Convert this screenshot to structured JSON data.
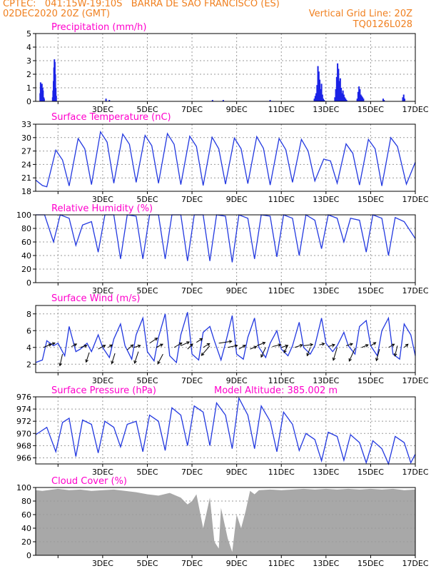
{
  "header": {
    "line1_left": "CPTEC:   041:15W-19:10S   BARRA DE SAO FRANCISCO (ES)",
    "line2_left": "02DEC2020 20Z (GMT)",
    "line2_right": "Vertical Grid Line: 20Z",
    "line3_right": "TQ0126L028"
  },
  "x_days": [
    "3DEC",
    "5DEC",
    "7DEC",
    "9DEC",
    "11DEC",
    "13DEC",
    "15DEC",
    "17DEC"
  ],
  "colors": {
    "series": "#2238e0",
    "bars": "#1a22e6",
    "cloud": "#a8a8a8",
    "title": "#ff00cc",
    "header": "#f08020"
  },
  "chart_data": [
    {
      "id": "precip",
      "type": "bar",
      "title": "Precipitation (mm/h)",
      "ylim": [
        0,
        5
      ],
      "yticks": [
        0,
        1,
        2,
        3,
        4,
        5
      ],
      "x": [
        0.2,
        0.22,
        0.25,
        0.28,
        0.31,
        0.33,
        0.36,
        0.38,
        0.76,
        0.78,
        0.8,
        0.82,
        0.84,
        0.86,
        0.88,
        0.9,
        0.92,
        3.15,
        3.3,
        7.92,
        8.4,
        10.5,
        12.48,
        12.52,
        12.56,
        12.6,
        12.64,
        12.68,
        12.72,
        12.76,
        12.8,
        12.84,
        12.88,
        12.92,
        13.4,
        13.44,
        13.48,
        13.52,
        13.56,
        13.6,
        13.64,
        13.68,
        13.72,
        13.76,
        13.8,
        13.84,
        13.88,
        13.92,
        14.4,
        14.44,
        14.48,
        14.52,
        14.56,
        14.6,
        14.64,
        14.68,
        15.56,
        15.6,
        16.44,
        16.48,
        16.52
      ],
      "values": [
        0.6,
        1.4,
        1.2,
        1.3,
        1.0,
        0.8,
        0.3,
        0.2,
        0.3,
        0.8,
        1.5,
        2.5,
        3.1,
        2.9,
        2.0,
        1.0,
        0.4,
        0.2,
        0.1,
        0.1,
        0.1,
        0.1,
        0.2,
        0.4,
        0.6,
        1.2,
        2.6,
        2.2,
        1.6,
        0.9,
        1.3,
        0.5,
        0.2,
        0.1,
        0.3,
        0.9,
        1.8,
        2.8,
        2.4,
        1.5,
        1.7,
        1.0,
        0.6,
        0.8,
        0.5,
        0.3,
        0.2,
        0.1,
        0.2,
        0.7,
        1.1,
        0.9,
        0.5,
        0.4,
        0.3,
        0.2,
        0.2,
        0.1,
        0.3,
        0.5,
        0.2
      ]
    },
    {
      "id": "temp",
      "type": "line",
      "title": "Surface Temperature (nC)",
      "ylim": [
        18,
        33
      ],
      "yticks": [
        18,
        21,
        24,
        27,
        30,
        33
      ],
      "x": [
        0.0,
        0.3,
        0.5,
        0.9,
        1.2,
        1.5,
        1.9,
        2.2,
        2.5,
        2.9,
        3.2,
        3.5,
        3.9,
        4.2,
        4.5,
        4.9,
        5.2,
        5.5,
        5.9,
        6.2,
        6.5,
        6.9,
        7.2,
        7.5,
        7.9,
        8.2,
        8.5,
        8.9,
        9.2,
        9.5,
        9.9,
        10.2,
        10.5,
        10.9,
        11.2,
        11.5,
        11.9,
        12.2,
        12.5,
        12.9,
        13.2,
        13.5,
        13.9,
        14.2,
        14.5,
        14.9,
        15.2,
        15.5,
        15.9,
        16.2,
        16.6,
        17.0
      ],
      "values": [
        20.5,
        19.3,
        19.0,
        27.2,
        25.0,
        19.2,
        29.8,
        27.5,
        19.5,
        31.3,
        29.0,
        19.8,
        30.8,
        28.5,
        20.0,
        30.5,
        28.2,
        19.8,
        30.9,
        28.5,
        19.5,
        30.3,
        28.0,
        19.3,
        30.1,
        27.5,
        19.6,
        29.9,
        27.5,
        19.7,
        30.2,
        27.6,
        19.4,
        29.8,
        27.3,
        20.0,
        29.6,
        27.0,
        20.3,
        25.2,
        24.8,
        19.8,
        28.6,
        26.5,
        19.4,
        29.6,
        27.5,
        19.2,
        30.0,
        28.0,
        19.6,
        24.5
      ]
    },
    {
      "id": "rh",
      "type": "line",
      "title": "Relative Humidity (%)",
      "ylim": [
        0,
        100
      ],
      "yticks": [
        0,
        20,
        40,
        60,
        80,
        100
      ],
      "x": [
        0.0,
        0.4,
        0.8,
        1.1,
        1.5,
        1.8,
        2.1,
        2.5,
        2.8,
        3.1,
        3.5,
        3.8,
        4.1,
        4.5,
        4.8,
        5.1,
        5.5,
        5.8,
        6.1,
        6.5,
        6.8,
        7.1,
        7.5,
        7.8,
        8.1,
        8.5,
        8.8,
        9.1,
        9.5,
        9.8,
        10.1,
        10.5,
        10.8,
        11.1,
        11.5,
        11.8,
        12.1,
        12.5,
        12.8,
        13.1,
        13.5,
        13.8,
        14.1,
        14.5,
        14.8,
        15.1,
        15.5,
        15.8,
        16.1,
        16.5,
        17.0
      ],
      "values": [
        100,
        100,
        60,
        100,
        95,
        55,
        85,
        90,
        45,
        100,
        100,
        35,
        100,
        98,
        35,
        100,
        100,
        35,
        100,
        100,
        32,
        100,
        100,
        32,
        100,
        98,
        30,
        100,
        95,
        35,
        100,
        98,
        38,
        100,
        95,
        40,
        100,
        92,
        50,
        100,
        95,
        60,
        95,
        92,
        45,
        100,
        95,
        40,
        96,
        90,
        65
      ]
    },
    {
      "id": "wind",
      "type": "line",
      "title": "Surface Wind (m/s)",
      "ylim": [
        1,
        9
      ],
      "yticks": [
        2,
        4,
        6,
        8
      ],
      "x": [
        0.0,
        0.3,
        0.5,
        0.8,
        1.0,
        1.3,
        1.5,
        1.8,
        2.0,
        2.3,
        2.5,
        2.8,
        3.0,
        3.3,
        3.5,
        3.8,
        4.0,
        4.3,
        4.5,
        4.8,
        5.0,
        5.3,
        5.5,
        5.8,
        6.0,
        6.3,
        6.5,
        6.8,
        7.0,
        7.3,
        7.5,
        7.8,
        8.0,
        8.3,
        8.5,
        8.8,
        9.0,
        9.3,
        9.5,
        9.8,
        10.0,
        10.3,
        10.5,
        10.8,
        11.0,
        11.3,
        11.5,
        11.8,
        12.0,
        12.3,
        12.5,
        12.8,
        13.0,
        13.3,
        13.5,
        13.8,
        14.0,
        14.3,
        14.5,
        14.8,
        15.0,
        15.3,
        15.5,
        15.8,
        16.0,
        16.3,
        16.5,
        16.8,
        17.0
      ],
      "values": [
        2.2,
        2.5,
        4.8,
        4.2,
        4.5,
        3.0,
        6.5,
        3.5,
        3.8,
        4.5,
        3.5,
        5.5,
        4.0,
        2.8,
        5.0,
        6.8,
        4.2,
        2.6,
        5.5,
        7.5,
        3.5,
        2.4,
        5.2,
        8.0,
        3.0,
        2.2,
        5.5,
        8.2,
        3.2,
        2.5,
        5.8,
        6.5,
        4.8,
        2.5,
        4.5,
        7.8,
        3.2,
        2.6,
        5.2,
        7.5,
        4.0,
        2.8,
        4.5,
        6.0,
        3.8,
        3.0,
        4.2,
        7.0,
        4.0,
        3.2,
        4.2,
        7.5,
        4.5,
        3.5,
        4.2,
        5.8,
        4.2,
        3.2,
        6.5,
        7.2,
        4.2,
        3.0,
        6.0,
        7.5,
        3.2,
        2.6,
        6.8,
        5.5,
        3.0
      ],
      "barbs": [
        {
          "x": 0.35,
          "y": 4.0,
          "u": 1.2,
          "v": 0.5
        },
        {
          "x": 0.6,
          "y": 4.3,
          "u": 0.9,
          "v": 0.3
        },
        {
          "x": 1.2,
          "y": 3.2,
          "u": -0.4,
          "v": -1.8
        },
        {
          "x": 1.6,
          "y": 4.1,
          "u": 0.8,
          "v": 0.4
        },
        {
          "x": 2.0,
          "y": 4.0,
          "u": 1.0,
          "v": 0.3
        },
        {
          "x": 2.4,
          "y": 3.4,
          "u": -0.5,
          "v": -1.5
        },
        {
          "x": 2.8,
          "y": 3.8,
          "u": 1.1,
          "v": 0.6
        },
        {
          "x": 3.25,
          "y": 4.0,
          "u": 0.6,
          "v": 0.4
        },
        {
          "x": 3.55,
          "y": 3.3,
          "u": -0.5,
          "v": -1.6
        },
        {
          "x": 4.1,
          "y": 3.7,
          "u": 0.9,
          "v": 0.8
        },
        {
          "x": 4.4,
          "y": 4.0,
          "u": 1.0,
          "v": 0.3
        },
        {
          "x": 4.6,
          "y": 3.5,
          "u": -0.6,
          "v": -1.8
        },
        {
          "x": 5.1,
          "y": 4.5,
          "u": 1.2,
          "v": 0.8
        },
        {
          "x": 5.4,
          "y": 4.0,
          "u": 1.0,
          "v": 0.5
        },
        {
          "x": 5.7,
          "y": 3.2,
          "u": -0.8,
          "v": -1.5
        },
        {
          "x": 6.2,
          "y": 4.0,
          "u": 1.2,
          "v": 0.7
        },
        {
          "x": 6.5,
          "y": 4.2,
          "u": 1.3,
          "v": 0.6
        },
        {
          "x": 6.8,
          "y": 3.8,
          "u": 0.8,
          "v": 0.8
        },
        {
          "x": 7.2,
          "y": 4.6,
          "u": 0.9,
          "v": 0.6
        },
        {
          "x": 7.5,
          "y": 4.0,
          "u": 1.0,
          "v": 0.6
        },
        {
          "x": 7.8,
          "y": 4.2,
          "u": -1.3,
          "v": -1.5
        },
        {
          "x": 8.2,
          "y": 4.5,
          "u": 2.0,
          "v": 0.3
        },
        {
          "x": 8.6,
          "y": 4.0,
          "u": 1.5,
          "v": 0.3
        },
        {
          "x": 9.1,
          "y": 3.8,
          "u": 1.0,
          "v": 0.6
        },
        {
          "x": 9.6,
          "y": 3.8,
          "u": 1.0,
          "v": 0.4
        },
        {
          "x": 9.9,
          "y": 4.2,
          "u": 1.3,
          "v": 0.5
        },
        {
          "x": 10.3,
          "y": 4.0,
          "u": -0.7,
          "v": -1.5
        },
        {
          "x": 10.6,
          "y": 4.1,
          "u": 1.3,
          "v": 0.3
        },
        {
          "x": 11.0,
          "y": 4.0,
          "u": 1.0,
          "v": 0.3
        },
        {
          "x": 11.3,
          "y": 4.3,
          "u": -0.6,
          "v": -1.2
        },
        {
          "x": 11.6,
          "y": 4.0,
          "u": 1.2,
          "v": 0.4
        },
        {
          "x": 12.0,
          "y": 4.2,
          "u": 1.4,
          "v": 0.2
        },
        {
          "x": 12.3,
          "y": 4.0,
          "u": -0.5,
          "v": -1.3
        },
        {
          "x": 12.7,
          "y": 4.3,
          "u": 0.8,
          "v": 0.2
        },
        {
          "x": 13.1,
          "y": 4.1,
          "u": 1.0,
          "v": 0.3
        },
        {
          "x": 13.5,
          "y": 4.0,
          "u": -0.6,
          "v": -2.0
        },
        {
          "x": 13.9,
          "y": 4.2,
          "u": 1.0,
          "v": 0.3
        },
        {
          "x": 14.3,
          "y": 3.9,
          "u": -0.9,
          "v": -2.0
        },
        {
          "x": 14.6,
          "y": 4.0,
          "u": 1.0,
          "v": 0.4
        },
        {
          "x": 15.0,
          "y": 4.2,
          "u": 0.8,
          "v": 0.5
        },
        {
          "x": 15.4,
          "y": 3.8,
          "u": -0.5,
          "v": -1.8
        },
        {
          "x": 15.8,
          "y": 4.0,
          "u": 0.9,
          "v": 0.5
        },
        {
          "x": 16.2,
          "y": 4.2,
          "u": -0.4,
          "v": -1.6
        },
        {
          "x": 16.5,
          "y": 4.0,
          "u": 0.6,
          "v": 0.5
        }
      ]
    },
    {
      "id": "pressure",
      "type": "line",
      "title": "Surface Pressure (hPa)",
      "annotation": "Model Altitude: 385.002  m",
      "ylim": [
        965,
        976
      ],
      "yticks": [
        966,
        968,
        970,
        972,
        974,
        976
      ],
      "x": [
        0.0,
        0.5,
        0.9,
        1.2,
        1.5,
        1.8,
        2.1,
        2.5,
        2.8,
        3.1,
        3.5,
        3.8,
        4.1,
        4.5,
        4.8,
        5.1,
        5.5,
        5.8,
        6.1,
        6.5,
        6.8,
        7.1,
        7.5,
        7.8,
        8.1,
        8.5,
        8.8,
        9.1,
        9.5,
        9.8,
        10.1,
        10.5,
        10.8,
        11.1,
        11.5,
        11.8,
        12.1,
        12.5,
        12.8,
        13.1,
        13.5,
        13.8,
        14.1,
        14.5,
        14.8,
        15.1,
        15.5,
        15.8,
        16.1,
        16.5,
        16.8,
        17.0
      ],
      "values": [
        969.8,
        971.0,
        967.0,
        971.8,
        972.5,
        966.2,
        972.2,
        971.5,
        966.8,
        972.0,
        971.0,
        967.8,
        971.5,
        972.0,
        967.0,
        973.0,
        972.0,
        967.2,
        974.2,
        973.0,
        968.0,
        974.5,
        973.5,
        968.0,
        975.0,
        973.0,
        967.5,
        975.8,
        973.0,
        967.5,
        974.5,
        972.0,
        967.0,
        973.5,
        971.5,
        967.2,
        970.0,
        969.0,
        965.5,
        970.2,
        969.5,
        965.6,
        969.8,
        968.5,
        965.2,
        968.8,
        967.5,
        965.0,
        969.5,
        968.5,
        965.2,
        966.6
      ]
    },
    {
      "id": "cloud",
      "type": "area",
      "title": "Cloud Cover (%)",
      "ylim": [
        0,
        100
      ],
      "yticks": [
        0,
        20,
        40,
        60,
        80,
        100
      ],
      "x": [
        0.0,
        0.3,
        1.0,
        1.5,
        2.0,
        2.5,
        3.0,
        3.5,
        4.0,
        4.5,
        5.0,
        5.5,
        6.0,
        6.5,
        6.8,
        7.0,
        7.2,
        7.5,
        7.8,
        8.0,
        8.2,
        8.3,
        8.6,
        8.8,
        9.0,
        9.2,
        9.4,
        9.6,
        9.8,
        10.0,
        10.5,
        11.0,
        11.5,
        12.0,
        12.5,
        13.0,
        13.5,
        14.0,
        14.5,
        15.0,
        15.5,
        16.0,
        16.5,
        17.0
      ],
      "values": [
        96,
        95,
        98,
        96,
        97,
        95,
        96,
        97,
        95,
        93,
        90,
        88,
        92,
        85,
        75,
        80,
        90,
        40,
        85,
        20,
        10,
        70,
        25,
        5,
        60,
        40,
        65,
        95,
        90,
        96,
        97,
        96,
        97,
        98,
        97,
        98,
        97,
        98,
        97,
        98,
        97,
        98,
        96,
        97
      ]
    }
  ]
}
